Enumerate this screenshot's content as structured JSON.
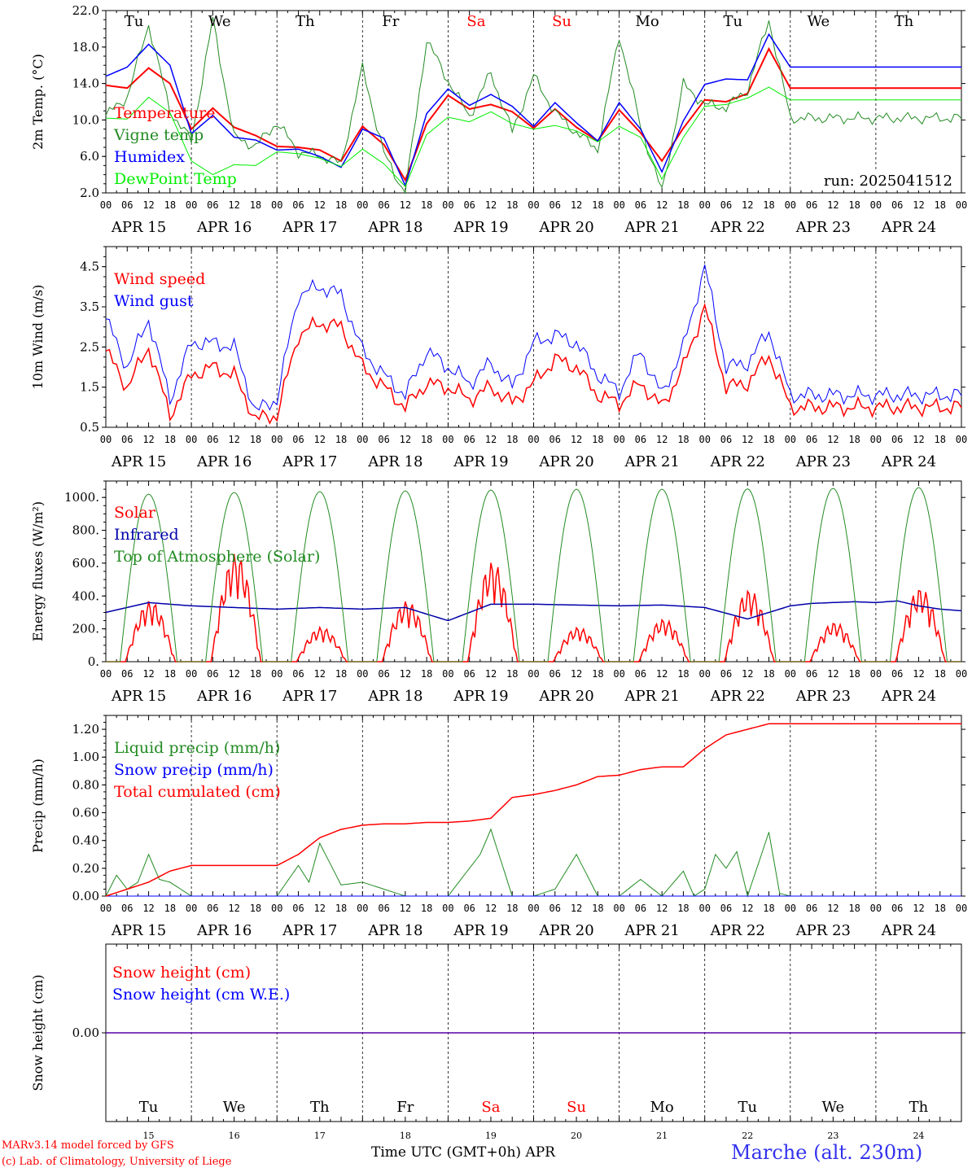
{
  "meta": {
    "run_label": "run: 2025041512",
    "model_credit": "MARv3.14 model forced by GFS",
    "lab_credit": "(c) Lab. of Climatology, University of Liege",
    "station": "Marche (alt. 230m)",
    "time_axis": "Time UTC (GMT+0h) APR"
  },
  "axis": {
    "hours_ticks": [
      "00",
      "06",
      "12",
      "18"
    ],
    "last_tick": "00",
    "dates": [
      "APR 15",
      "APR 16",
      "APR 17",
      "APR 18",
      "APR 19",
      "APR 20",
      "APR 21",
      "APR 22",
      "APR 23",
      "APR 24"
    ],
    "day_numbers": [
      "15",
      "16",
      "17",
      "18",
      "19",
      "20",
      "21",
      "22",
      "23",
      "24"
    ],
    "weekdays": [
      "Tu",
      "We",
      "Th",
      "Fr",
      "Sa",
      "Su",
      "Mo",
      "Tu",
      "We",
      "Th"
    ],
    "weekday_colors": [
      "#000000",
      "#000000",
      "#000000",
      "#000000",
      "#ff0000",
      "#ff0000",
      "#000000",
      "#000000",
      "#000000",
      "#000000"
    ]
  },
  "colors": {
    "red": "#ff0000",
    "darkgreen": "#228b22",
    "blue": "#0000ff",
    "lightgreen": "#00ee00",
    "darkblue": "#0000aa"
  },
  "chart_data": [
    {
      "id": "temp",
      "type": "line",
      "ylabel": "2m Temp. (°C)",
      "ylim": [
        2,
        22
      ],
      "yticks": [
        "2.0",
        "6.0",
        "10.0",
        "14.0",
        "18.0",
        "22.0"
      ],
      "ytick_values": [
        2,
        6,
        10,
        14,
        18,
        22
      ],
      "x_unit": "hours since APR 15 00 UTC",
      "series": [
        {
          "name": "Temperature",
          "color": "#ff0000",
          "width": 2,
          "x": [
            0,
            6,
            12,
            18,
            24,
            30,
            36,
            42,
            48,
            54,
            60,
            66,
            72,
            78,
            84,
            90,
            96,
            102,
            108,
            114,
            120,
            126,
            132,
            138,
            144,
            150,
            156,
            162,
            168,
            174,
            180,
            186,
            192,
            198,
            204,
            210,
            216,
            222,
            228,
            234,
            240
          ],
          "y": [
            13.8,
            13.5,
            15.7,
            14.0,
            9.0,
            11.3,
            9.2,
            8.3,
            7.1,
            7.0,
            6.7,
            5.5,
            9.3,
            7.3,
            3.4,
            9.6,
            12.7,
            11.2,
            11.7,
            10.9,
            9.1,
            11.2,
            9.2,
            7.7,
            11.1,
            8.6,
            5.5,
            9.1,
            12.2,
            12.0,
            12.9,
            17.8,
            13.5,
            13.5,
            13.5,
            13.5,
            13.5,
            13.5,
            13.5,
            13.5,
            13.5
          ]
        },
        {
          "name": "Vigne temp",
          "color": "#228b22",
          "width": 1,
          "x": [
            0,
            6,
            12,
            18,
            24,
            30,
            36,
            42,
            48,
            54,
            60,
            66,
            72,
            78,
            84,
            90,
            96,
            102,
            108,
            114,
            120,
            126,
            132,
            138,
            144,
            150,
            156,
            162,
            168,
            174,
            180,
            186,
            192,
            198,
            204,
            210,
            216,
            222,
            228,
            234,
            240
          ],
          "y": [
            10.5,
            12.5,
            20.5,
            11.0,
            7.7,
            21.0,
            8.1,
            7.1,
            9.7,
            6.5,
            6.1,
            5.2,
            15.7,
            6.3,
            1.9,
            18.8,
            14.3,
            10.4,
            15.2,
            8.7,
            14.8,
            10.8,
            8.6,
            6.8,
            19.3,
            9.3,
            2.1,
            13.9,
            11.7,
            11.4,
            13.3,
            21.0,
            10.2,
            10.2,
            10.2,
            10.2,
            10.2,
            10.2,
            10.2,
            10.2,
            10.2
          ]
        },
        {
          "name": "Humidex",
          "color": "#0000ff",
          "width": 1.5,
          "x": [
            0,
            6,
            12,
            18,
            24,
            30,
            36,
            42,
            48,
            54,
            60,
            66,
            72,
            78,
            84,
            90,
            96,
            102,
            108,
            114,
            120,
            126,
            132,
            138,
            144,
            150,
            156,
            162,
            168,
            174,
            180,
            186,
            192,
            198,
            204,
            210,
            216,
            222,
            228,
            234,
            240
          ],
          "y": [
            14.8,
            15.8,
            18.3,
            16.0,
            8.5,
            10.5,
            8.1,
            7.8,
            6.7,
            6.8,
            6.0,
            4.8,
            9.0,
            8.0,
            2.8,
            10.7,
            13.4,
            11.6,
            12.8,
            11.5,
            9.3,
            11.9,
            9.7,
            7.7,
            11.9,
            9.0,
            4.3,
            9.9,
            13.9,
            14.5,
            14.4,
            19.4,
            15.8,
            15.8,
            15.8,
            15.8,
            15.8,
            15.8,
            15.8,
            15.8,
            15.8
          ]
        },
        {
          "name": "DewPoint Temp",
          "color": "#00ee00",
          "width": 1,
          "x": [
            0,
            6,
            12,
            18,
            24,
            30,
            36,
            42,
            48,
            54,
            60,
            66,
            72,
            78,
            84,
            90,
            96,
            102,
            108,
            114,
            120,
            126,
            132,
            138,
            144,
            150,
            156,
            162,
            168,
            174,
            180,
            186,
            192,
            198,
            204,
            210,
            216,
            222,
            228,
            234,
            240
          ],
          "y": [
            10.2,
            10.1,
            12.5,
            10.8,
            5.5,
            4.0,
            5.1,
            5.0,
            6.5,
            6.3,
            5.8,
            4.9,
            6.8,
            5.2,
            2.7,
            8.4,
            10.3,
            9.8,
            10.9,
            9.6,
            9.0,
            9.4,
            8.8,
            7.6,
            9.3,
            8.1,
            3.5,
            8.1,
            11.5,
            11.7,
            12.4,
            13.6,
            12.2,
            12.2,
            12.2,
            12.2,
            12.2,
            12.2,
            12.2,
            12.2,
            12.2
          ]
        }
      ]
    },
    {
      "id": "wind",
      "type": "line",
      "ylabel": "10m Wind (m/s)",
      "ylim": [
        0.5,
        5.0
      ],
      "yticks": [
        "0.5",
        "1.5",
        "2.5",
        "3.5",
        "4.5"
      ],
      "ytick_values": [
        0.5,
        1.5,
        2.5,
        3.5,
        4.5
      ],
      "series": [
        {
          "name": "Wind speed",
          "color": "#ff0000",
          "width": 1.5,
          "x": [
            0,
            6,
            12,
            18,
            24,
            30,
            36,
            42,
            48,
            54,
            60,
            66,
            72,
            78,
            84,
            90,
            96,
            102,
            108,
            114,
            120,
            126,
            132,
            138,
            144,
            150,
            156,
            162,
            168,
            174,
            180,
            186,
            192,
            198,
            204,
            210,
            216,
            222,
            228,
            234,
            240
          ],
          "y": [
            2.4,
            1.5,
            2.5,
            0.8,
            1.8,
            2.0,
            1.8,
            0.7,
            0.8,
            2.8,
            3.1,
            3.0,
            2.0,
            1.5,
            1.0,
            1.6,
            1.5,
            1.2,
            1.5,
            1.1,
            1.6,
            2.2,
            2.0,
            1.3,
            1.1,
            1.6,
            1.0,
            2.0,
            3.5,
            1.5,
            1.6,
            2.3,
            1.0,
            1.0,
            1.0,
            1.0,
            1.0,
            1.0,
            1.0,
            1.0,
            1.0
          ]
        },
        {
          "name": "Wind gust",
          "color": "#0000ff",
          "width": 1,
          "x": [
            0,
            6,
            12,
            18,
            24,
            30,
            36,
            42,
            48,
            54,
            60,
            66,
            72,
            78,
            84,
            90,
            96,
            102,
            108,
            114,
            120,
            126,
            132,
            138,
            144,
            150,
            156,
            162,
            168,
            174,
            180,
            186,
            192,
            198,
            204,
            210,
            216,
            222,
            228,
            234,
            240
          ],
          "y": [
            3.2,
            2.0,
            3.2,
            1.2,
            2.6,
            2.6,
            2.5,
            0.9,
            1.2,
            3.8,
            4.0,
            3.8,
            2.4,
            1.8,
            1.3,
            2.4,
            2.0,
            1.6,
            2.1,
            1.5,
            2.6,
            2.8,
            2.6,
            1.8,
            1.4,
            2.4,
            1.3,
            2.5,
            4.5,
            2.0,
            2.1,
            2.9,
            1.3,
            1.3,
            1.3,
            1.3,
            1.3,
            1.3,
            1.3,
            1.3,
            1.3
          ]
        }
      ]
    },
    {
      "id": "energy",
      "type": "line",
      "ylabel": "Energy fluxes (W/m²)",
      "ylim": [
        0,
        1100
      ],
      "yticks": [
        "0.",
        "200.",
        "400.",
        "600.",
        "800.",
        "1000."
      ],
      "ytick_values": [
        0,
        200,
        400,
        600,
        800,
        1000
      ],
      "series": [
        {
          "name": "Solar",
          "color": "#ff0000",
          "width": 1.5,
          "day_peaks": [
            370,
            660,
            210,
            370,
            610,
            210,
            260,
            440,
            240,
            450
          ]
        },
        {
          "name": "Infrared",
          "color": "#0000aa",
          "width": 1.5,
          "x": [
            0,
            12,
            24,
            36,
            48,
            60,
            72,
            84,
            96,
            108,
            120,
            132,
            144,
            156,
            168,
            180,
            192,
            198,
            204,
            210,
            216,
            222,
            228,
            234,
            240
          ],
          "y": [
            300,
            360,
            340,
            330,
            320,
            330,
            320,
            330,
            250,
            350,
            350,
            345,
            340,
            345,
            330,
            260,
            340,
            355,
            360,
            365,
            360,
            370,
            340,
            320,
            310
          ]
        },
        {
          "name": "Top of Atmosphere (Solar)",
          "color": "#228b22",
          "width": 1,
          "day_peaks": [
            1020,
            1030,
            1035,
            1040,
            1045,
            1050,
            1050,
            1052,
            1055,
            1060
          ]
        }
      ]
    },
    {
      "id": "precip",
      "type": "line",
      "ylabel": "Precip (mm/h)",
      "ylim": [
        0,
        1.3
      ],
      "yticks": [
        "0.00",
        "0.20",
        "0.40",
        "0.60",
        "0.80",
        "1.00",
        "1.20"
      ],
      "ytick_values": [
        0,
        0.2,
        0.4,
        0.6,
        0.8,
        1.0,
        1.2
      ],
      "series": [
        {
          "name": "Liquid precip (mm/h)",
          "color": "#228b22",
          "width": 1,
          "x": [
            0,
            3,
            6,
            9,
            12,
            15,
            18,
            21,
            24,
            30,
            36,
            42,
            48,
            54,
            57,
            60,
            66,
            72,
            78,
            84,
            90,
            96,
            102,
            105,
            108,
            114,
            120,
            126,
            132,
            138,
            144,
            150,
            156,
            162,
            165,
            168,
            171,
            174,
            177,
            180,
            186,
            189,
            192,
            198,
            204,
            210,
            216,
            222,
            228,
            234,
            240
          ],
          "y": [
            0.0,
            0.15,
            0.05,
            0.1,
            0.3,
            0.12,
            0.1,
            0.05,
            0.0,
            0.0,
            0.0,
            0.0,
            0.0,
            0.22,
            0.1,
            0.38,
            0.08,
            0.1,
            0.05,
            0.0,
            0.0,
            0.0,
            0.2,
            0.3,
            0.48,
            0.0,
            0.0,
            0.05,
            0.3,
            0.0,
            0.0,
            0.12,
            0.0,
            0.18,
            0.0,
            0.05,
            0.3,
            0.2,
            0.32,
            0.0,
            0.46,
            0.02,
            0.0,
            0.0,
            0.0,
            0.0,
            0.0,
            0.0,
            0.0,
            0.0,
            0.0
          ]
        },
        {
          "name": "Snow precip (mm/h)",
          "color": "#0000ff",
          "width": 1,
          "x": [
            0,
            240
          ],
          "y": [
            0,
            0
          ]
        },
        {
          "name": "Total cumulated (cm)",
          "color": "#ff0000",
          "width": 1.5,
          "x": [
            0,
            6,
            12,
            18,
            24,
            30,
            36,
            42,
            48,
            54,
            60,
            66,
            72,
            78,
            84,
            90,
            96,
            102,
            108,
            114,
            120,
            126,
            132,
            138,
            144,
            150,
            156,
            162,
            168,
            174,
            180,
            186,
            192,
            198,
            204,
            210,
            216,
            222,
            228,
            234,
            240
          ],
          "y": [
            0.0,
            0.05,
            0.1,
            0.18,
            0.22,
            0.22,
            0.22,
            0.22,
            0.22,
            0.3,
            0.42,
            0.48,
            0.51,
            0.52,
            0.52,
            0.53,
            0.53,
            0.54,
            0.56,
            0.71,
            0.73,
            0.76,
            0.8,
            0.86,
            0.87,
            0.91,
            0.93,
            0.93,
            1.06,
            1.16,
            1.2,
            1.24,
            1.24,
            1.24,
            1.24,
            1.24,
            1.24,
            1.24,
            1.24,
            1.24,
            1.24
          ]
        }
      ]
    },
    {
      "id": "snow",
      "type": "line",
      "ylabel": "Snow height (cm)",
      "ylim": [
        -1,
        1
      ],
      "yticks": [
        "0.00"
      ],
      "ytick_values": [
        0
      ],
      "series": [
        {
          "name": "Snow height (cm)",
          "color": "#ff0000",
          "width": 1.5,
          "x": [
            0,
            240
          ],
          "y": [
            0,
            0
          ]
        },
        {
          "name": "Snow height (cm W.E.)",
          "color": "#0000ff",
          "width": 1,
          "x": [
            0,
            240
          ],
          "y": [
            0,
            0
          ]
        }
      ]
    }
  ]
}
